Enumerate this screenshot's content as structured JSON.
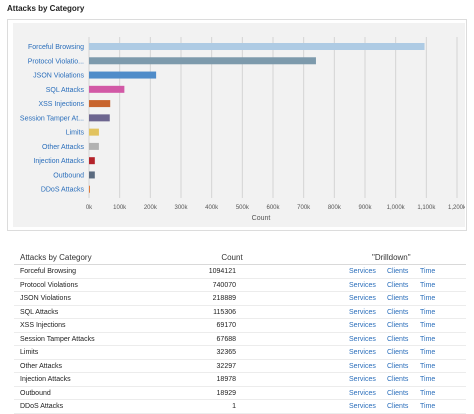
{
  "panel_title": "Attacks by Category",
  "chart_data": {
    "type": "bar",
    "orientation": "horizontal",
    "categories": [
      "Forceful Browsing",
      "Protocol Violatio...",
      "JSON Violations",
      "SQL Attacks",
      "XSS Injections",
      "Session Tamper At...",
      "Limits",
      "Other Attacks",
      "Injection Attacks",
      "Outbound",
      "DDoS Attacks"
    ],
    "values": [
      1094121,
      740070,
      218889,
      115306,
      69170,
      67688,
      32365,
      32297,
      18978,
      18929,
      1
    ],
    "colors": [
      "#aecbe4",
      "#7d9aac",
      "#4f8cc9",
      "#d259a6",
      "#c8642e",
      "#6d6690",
      "#e2c35f",
      "#b2b2b2",
      "#b4232a",
      "#5b6b80",
      "#e07b3c"
    ],
    "xlabel": "Count",
    "ylabel": "",
    "xlim": [
      0,
      1200000
    ],
    "x_ticks": [
      0,
      100000,
      200000,
      300000,
      400000,
      500000,
      600000,
      700000,
      800000,
      900000,
      1000000,
      1100000,
      1200000
    ],
    "x_tick_labels": [
      "0k",
      "100k",
      "200k",
      "300k",
      "400k",
      "500k",
      "600k",
      "700k",
      "800k",
      "900k",
      "1,000k",
      "1,100k",
      "1,200k"
    ],
    "grid": true
  },
  "table": {
    "headers": {
      "category": "Attacks by Category",
      "count": "Count",
      "drilldown": "\"Drilldown\""
    },
    "links": {
      "services": "Services",
      "clients": "Clients",
      "time": "Time"
    },
    "rows": [
      {
        "category": "Forceful Browsing",
        "count": "1094121"
      },
      {
        "category": "Protocol Violations",
        "count": "740070"
      },
      {
        "category": "JSON Violations",
        "count": "218889"
      },
      {
        "category": "SQL Attacks",
        "count": "115306"
      },
      {
        "category": "XSS Injections",
        "count": "69170"
      },
      {
        "category": "Session Tamper Attacks",
        "count": "67688"
      },
      {
        "category": "Limits",
        "count": "32365"
      },
      {
        "category": "Other Attacks",
        "count": "32297"
      },
      {
        "category": "Injection Attacks",
        "count": "18978"
      },
      {
        "category": "Outbound",
        "count": "18929"
      },
      {
        "category": "DDoS Attacks",
        "count": "1"
      }
    ]
  }
}
